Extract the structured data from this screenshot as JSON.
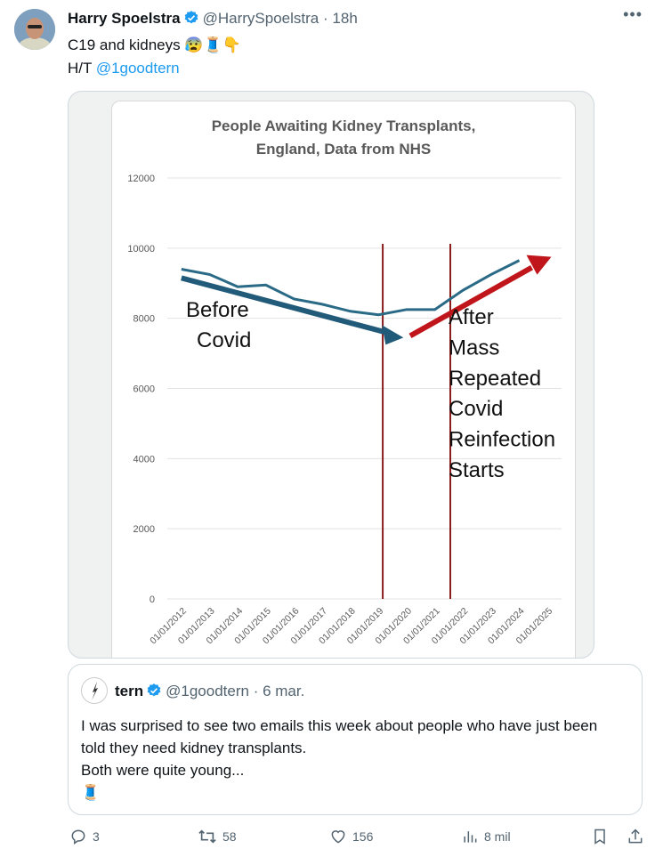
{
  "tweet": {
    "name": "Harry Spoelstra",
    "handle": "@HarrySpoelstra",
    "sep": "·",
    "time": "18h",
    "line1": "C19 and kidneys 😰🧵👇",
    "ht_prefix": "H/T ",
    "ht_link": "@1goodtern"
  },
  "chart_data": {
    "type": "line",
    "title": "People Awaiting Kidney Transplants,",
    "subtitle": "England, Data from NHS",
    "categories": [
      "01/01/2012",
      "01/01/2013",
      "01/01/2014",
      "01/01/2015",
      "01/01/2016",
      "01/01/2017",
      "01/01/2018",
      "01/01/2019",
      "01/01/2020",
      "01/01/2021",
      "01/01/2022",
      "01/01/2023",
      "01/01/2024",
      "01/01/2025"
    ],
    "y_ticks": [
      "0",
      "2000",
      "4000",
      "6000",
      "8000",
      "10000",
      "12000"
    ],
    "ylim": [
      0,
      12000
    ],
    "series": [
      {
        "values": [
          9400,
          9250,
          8900,
          8950,
          8550,
          8400,
          8200,
          8100,
          8250,
          8250,
          8800,
          9250,
          9650,
          null
        ],
        "color": "#2a6a86"
      }
    ],
    "annotations": {
      "left": [
        "Before",
        "Covid"
      ],
      "right": [
        "After",
        "Mass",
        "Repeated",
        "Covid",
        "Reinfection",
        "Starts"
      ]
    },
    "colors": {
      "line": "#2a6a86",
      "arrow_blue": "#225b7a",
      "arrow_red": "#c0161b",
      "vline": "#8b1c1c"
    }
  },
  "quote": {
    "name": "tern",
    "handle": "@1goodtern",
    "sep": "·",
    "date": "6 mar.",
    "text1": "I was surprised to see two emails this week about people who have just been told they need kidney transplants.",
    "text2": "Both were quite young...",
    "emoji": "🧵"
  },
  "actions": {
    "replies": "3",
    "retweets": "58",
    "likes": "156",
    "views": "8 mil"
  }
}
